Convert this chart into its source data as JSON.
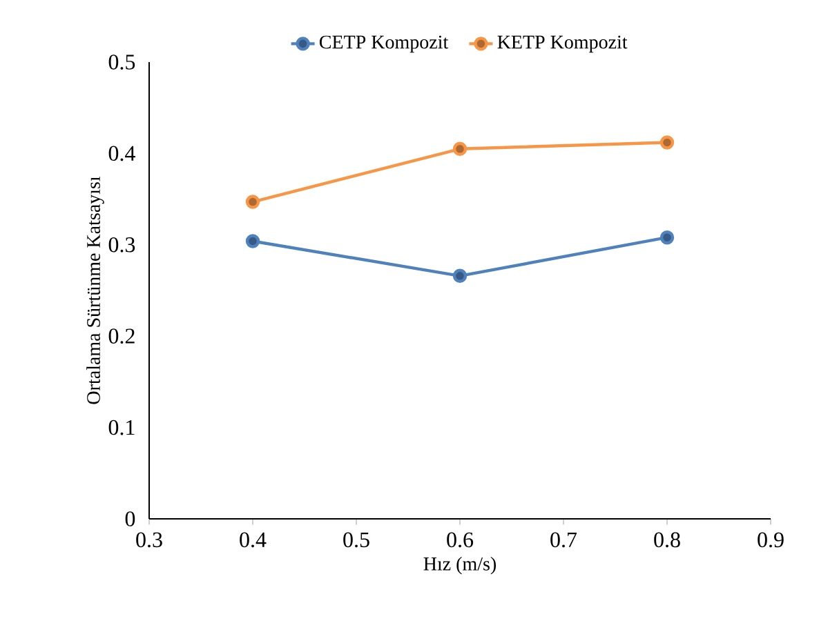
{
  "chart_data": {
    "type": "line",
    "xlabel": "Hız (m/s)",
    "ylabel": "Ortalama Sürtünme Katsayısı",
    "x": [
      0.4,
      0.6,
      0.8
    ],
    "series": [
      {
        "name": "CETP Kompozit",
        "color": "#4f81bd",
        "values": [
          0.304,
          0.266,
          0.308
        ]
      },
      {
        "name": "KETP Kompozit",
        "color": "#f79646",
        "values": [
          0.347,
          0.405,
          0.412
        ]
      }
    ],
    "xlim": [
      0.3,
      0.9
    ],
    "xticks": [
      0.3,
      0.4,
      0.5,
      0.6,
      0.7,
      0.8,
      0.9
    ],
    "ylim": [
      0,
      0.5
    ],
    "yticks": [
      0,
      0.1,
      0.2,
      0.3,
      0.4,
      0.5
    ],
    "legend": "top",
    "grid": false,
    "marker": "circle",
    "line_style": "solid"
  }
}
